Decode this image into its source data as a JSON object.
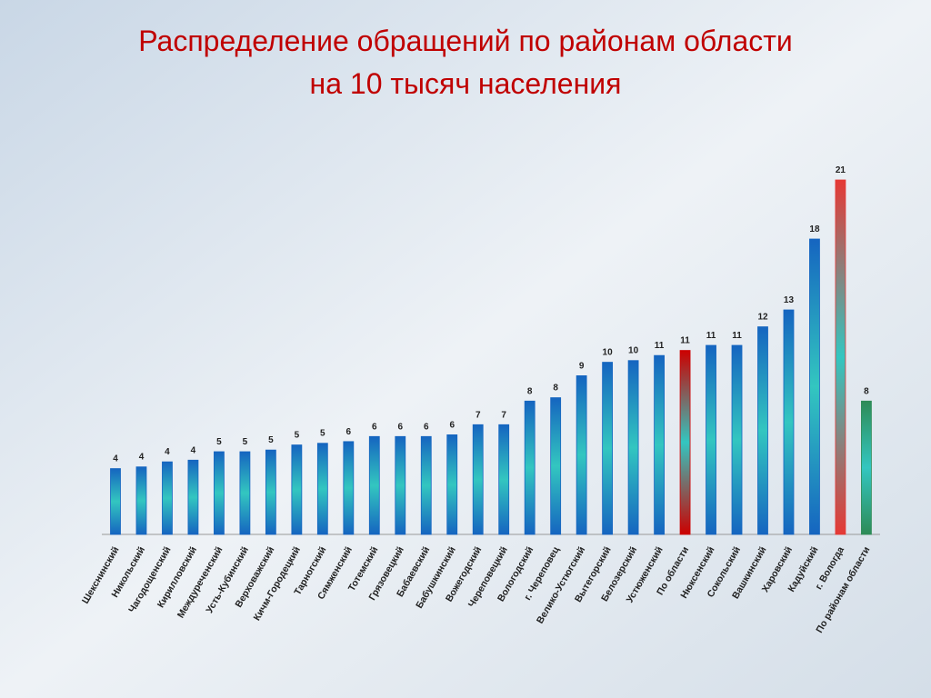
{
  "chart_data": {
    "type": "bar",
    "title": [
      "Распределение обращений  по районам области",
      "на 10 тысяч населения"
    ],
    "categories": [
      "Шекснинский",
      "Никольский",
      "Чагодощенский",
      "Кирилловский",
      "Междуреченский",
      "Усть-Кубинский",
      "Верховажский",
      "Кичм-Городецкий",
      "Тарногский",
      "Сямженский",
      "Тотемский",
      "Грязовецкий",
      "Бабаевский",
      "Бабушкинский",
      "Вожегодский",
      "Череповецкий",
      "Вологодский",
      "г. Череповец",
      "Велико-Устюгский",
      "Вытегорский",
      "Белозерский",
      "Устюженский",
      "По области",
      "Нюксенский",
      "Сокольский",
      "Вашкинский",
      "Харовский",
      "Кадуйский",
      "г. Вологда",
      "По районам области"
    ],
    "values": [
      3.9,
      4.0,
      4.3,
      4.4,
      4.9,
      4.9,
      5.0,
      5.3,
      5.4,
      5.5,
      5.8,
      5.8,
      5.8,
      5.9,
      6.5,
      6.5,
      7.9,
      8.1,
      9.4,
      10.2,
      10.3,
      10.6,
      10.9,
      11.2,
      11.2,
      12.3,
      13.3,
      17.5,
      21.0,
      7.9
    ],
    "value_labels": [
      "4",
      "4",
      "4",
      "4",
      "5",
      "5",
      "5",
      "5",
      "5",
      "6",
      "6",
      "6",
      "6",
      "6",
      "7",
      "7",
      "8",
      "8",
      "9",
      "10",
      "10",
      "11",
      "11",
      "11",
      "11",
      "12",
      "13",
      "18",
      "21",
      "8"
    ],
    "colors": [
      "#1565c0",
      "#1565c0",
      "#1565c0",
      "#1565c0",
      "#1565c0",
      "#1565c0",
      "#1565c0",
      "#1565c0",
      "#1565c0",
      "#1565c0",
      "#1565c0",
      "#1565c0",
      "#1565c0",
      "#1565c0",
      "#1565c0",
      "#1565c0",
      "#1565c0",
      "#1565c0",
      "#1565c0",
      "#1565c0",
      "#1565c0",
      "#1565c0",
      "#cc0000",
      "#1565c0",
      "#1565c0",
      "#1565c0",
      "#1565c0",
      "#1565c0",
      "#e53935",
      "#2e8b57"
    ],
    "ylim": [
      0,
      21
    ]
  }
}
